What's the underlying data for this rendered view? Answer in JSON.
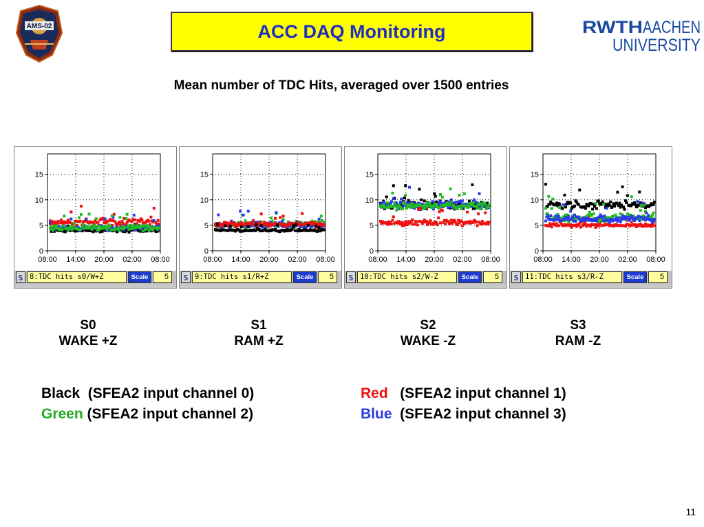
{
  "header": {
    "title": "ACC DAQ Monitoring",
    "subtitle": "Mean number of TDC Hits, averaged over 1500 entries",
    "ams_logo_text": "AMS-02",
    "rwth_logo": {
      "part1": "RWTH",
      "part2": "AACHEN",
      "part3": "UNIVERSITY"
    }
  },
  "colors": {
    "title_bg": "#ffff00",
    "title_text": "#1f2fbf",
    "black": "#000000",
    "green": "#22bb22",
    "red": "#ee1111",
    "blue": "#2a3ae8"
  },
  "chart_data": [
    {
      "type": "scatter",
      "xticks": [
        "08:00",
        "14:00",
        "20:00",
        "02:00",
        "08:00"
      ],
      "yticks": [
        0,
        5,
        10,
        15
      ],
      "ylim": [
        0,
        19
      ],
      "grid": true,
      "statusbar": {
        "button": "S",
        "histogram": "8:TDC hits s0/W+Z",
        "scale_label": "Scale",
        "value": "5"
      },
      "series": [
        {
          "name": "Black",
          "color": "#000000",
          "mean": 4.0,
          "spread": 0.4
        },
        {
          "name": "Red",
          "color": "#ee1111",
          "mean": 5.5,
          "spread": 1.2
        },
        {
          "name": "Blue",
          "color": "#2a3ae8",
          "mean": 4.5,
          "spread": 0.8
        },
        {
          "name": "Green",
          "color": "#22bb22",
          "mean": 4.5,
          "spread": 0.9
        }
      ],
      "caption": {
        "sector": "S0",
        "side": "WAKE +Z"
      }
    },
    {
      "type": "scatter",
      "xticks": [
        "08:00",
        "14:00",
        "20:00",
        "02:00",
        "08:00"
      ],
      "yticks": [
        0,
        5,
        10,
        15
      ],
      "ylim": [
        0,
        19
      ],
      "grid": true,
      "statusbar": {
        "button": "S",
        "histogram": "9:TDC hits s1/R+Z",
        "scale_label": "Scale",
        "value": "5"
      },
      "series": [
        {
          "name": "Green",
          "color": "#22bb22",
          "mean": 5.2,
          "spread": 0.9
        },
        {
          "name": "Blue",
          "color": "#2a3ae8",
          "mean": 5.0,
          "spread": 1.0
        },
        {
          "name": "Red",
          "color": "#ee1111",
          "mean": 5.2,
          "spread": 0.7
        },
        {
          "name": "Black",
          "color": "#000000",
          "mean": 4.0,
          "spread": 0.35
        }
      ],
      "caption": {
        "sector": "S1",
        "side": "RAM +Z"
      }
    },
    {
      "type": "scatter",
      "xticks": [
        "08:00",
        "14:00",
        "20:00",
        "02:00",
        "08:00"
      ],
      "yticks": [
        0,
        5,
        10,
        15
      ],
      "ylim": [
        0,
        19
      ],
      "grid": true,
      "statusbar": {
        "button": "S",
        "histogram": "10:TDC hits s2/W-Z",
        "scale_label": "Scale",
        "value": "5"
      },
      "series": [
        {
          "name": "Black",
          "color": "#000000",
          "mean": 9.0,
          "spread": 1.2
        },
        {
          "name": "Blue",
          "color": "#2a3ae8",
          "mean": 9.0,
          "spread": 1.2
        },
        {
          "name": "Green",
          "color": "#22bb22",
          "mean": 8.8,
          "spread": 1.0
        },
        {
          "name": "Red",
          "color": "#ee1111",
          "mean": 5.5,
          "spread": 0.9
        }
      ],
      "caption": {
        "sector": "S2",
        "side": "WAKE -Z"
      }
    },
    {
      "type": "scatter",
      "xticks": [
        "08:00",
        "14:00",
        "20:00",
        "02:00",
        "08:00"
      ],
      "yticks": [
        0,
        5,
        10,
        15
      ],
      "ylim": [
        0,
        19
      ],
      "grid": true,
      "statusbar": {
        "button": "S",
        "histogram": "11:TDC hits s3/R-Z",
        "scale_label": "Scale",
        "value": "5"
      },
      "series": [
        {
          "name": "Black",
          "color": "#000000",
          "mean": 9.0,
          "spread": 1.2
        },
        {
          "name": "Red",
          "color": "#ee1111",
          "mean": 5.0,
          "spread": 0.5
        },
        {
          "name": "Green",
          "color": "#22bb22",
          "mean": 6.5,
          "spread": 1.3
        },
        {
          "name": "Blue",
          "color": "#2a3ae8",
          "mean": 6.3,
          "spread": 1.0
        }
      ],
      "caption": {
        "sector": "S3",
        "side": "RAM -Z"
      }
    }
  ],
  "legend": {
    "line1_left_color": "Black",
    "line1_left_text": "  (SFEA2 input channel 0)",
    "line2_left_color": "Green",
    "line2_left_text": " (SFEA2 input channel 2)",
    "line1_right_color": "Red",
    "line1_right_text": "   (SFEA2 input channel 1)",
    "line2_right_color": "Blue",
    "line2_right_text": "  (SFEA2 input channel 3)"
  },
  "page_number": "11"
}
